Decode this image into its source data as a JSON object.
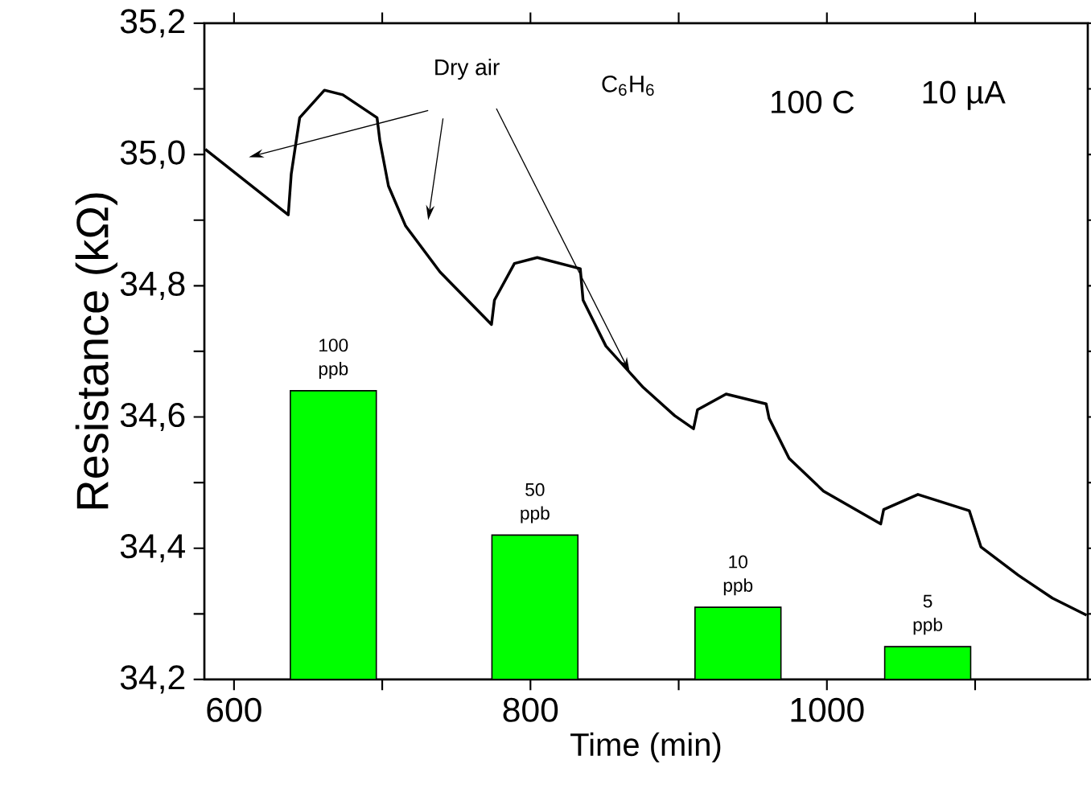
{
  "chart_data": {
    "type": "line",
    "xlabel": "Time (min)",
    "ylabel": "Resistance (kΩ)",
    "xlim": [
      580,
      1176
    ],
    "ylim": [
      34.2,
      35.2
    ],
    "xticks": [
      600,
      {
        "value": 700,
        "label": null
      },
      800,
      {
        "value": 900,
        "label": null
      },
      1000,
      {
        "value": 1100,
        "label": null
      }
    ],
    "yticks": [
      {
        "value": 34.2,
        "label": "34,2"
      },
      {
        "value": 34.3,
        "label": null
      },
      {
        "value": 34.4,
        "label": "34,4"
      },
      {
        "value": 34.5,
        "label": null
      },
      {
        "value": 34.6,
        "label": "34,6"
      },
      {
        "value": 34.7,
        "label": null
      },
      {
        "value": 34.8,
        "label": "34,8"
      },
      {
        "value": 34.9,
        "label": null
      },
      {
        "value": 35.0,
        "label": "35,0"
      },
      {
        "value": 35.1,
        "label": null
      },
      {
        "value": 35.2,
        "label": "35,2"
      }
    ],
    "legend": false,
    "grid": false,
    "marker": "none",
    "line_style": "solid",
    "annotations": [
      {
        "text": "Dry air",
        "x": 867,
        "y": 34.668
      },
      "C$_{6}$H$_{6}$",
      "100 C",
      "10 µA",
      {
        "text": "100 ppb",
        "x": 667,
        "y": 34.64
      },
      {
        "text": "50 ppb",
        "x": 803,
        "y": 34.42
      },
      {
        "text": "10 ppb",
        "x": 940,
        "y": 34.31
      },
      {
        "text": "5 ppb",
        "x": 1068,
        "y": 34.25
      }
    ],
    "series": [
      {
        "type": "bar",
        "color": "#00ff00",
        "x": [
          667,
          803,
          940,
          1068
        ],
        "values": [
          34.64,
          34.42,
          34.31,
          34.25
        ]
      },
      {
        "color": "#000000",
        "x": [
          580.6,
          636.6,
          638.6,
          644.3,
          661,
          673.4,
          696.5,
          698.4,
          704.2,
          715.8,
          739,
          773.7,
          775.7,
          789.2,
          804.6,
          833.6,
          835.5,
          850.9,
          876.1,
          897.3,
          910,
          912.7,
          932,
          959,
          961,
          974.5,
          997.7,
          1036.3,
          1038.3,
          1061.4,
          1096.1,
          1103.9,
          1129,
          1152.1,
          1175.2
        ],
        "values": [
          35.008,
          34.908,
          34.97,
          35.056,
          35.098,
          35.091,
          35.056,
          35.021,
          34.952,
          34.891,
          34.821,
          34.741,
          34.778,
          34.834,
          34.843,
          34.826,
          34.778,
          34.708,
          34.645,
          34.602,
          34.582,
          34.611,
          34.635,
          34.62,
          34.598,
          34.537,
          34.487,
          34.437,
          34.459,
          34.482,
          34.457,
          34.402,
          34.359,
          34.324,
          34.298
        ]
      }
    ]
  }
}
